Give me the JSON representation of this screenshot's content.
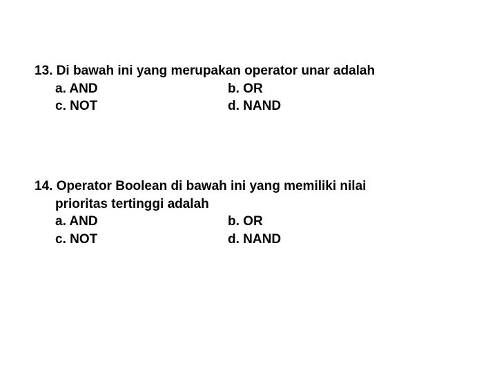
{
  "questions": [
    {
      "number": "13.",
      "stem": "Di bawah ini yang merupakan operator unar adalah",
      "options": {
        "a": "a. AND",
        "b": "b. OR",
        "c": "c. NOT",
        "d": "d. NAND"
      }
    },
    {
      "number": "14.",
      "stem_line1": "Operator Boolean di bawah ini yang memiliki nilai",
      "stem_line2": "prioritas tertinggi adalah",
      "options": {
        "a": "a. AND",
        "b": "b. OR",
        "c": "c. NOT",
        "d": "d. NAND"
      }
    }
  ],
  "style": {
    "background_color": "#ffffff",
    "text_color": "#000000",
    "font_family": "Arial",
    "font_size_pt": 14,
    "font_weight": "bold"
  }
}
